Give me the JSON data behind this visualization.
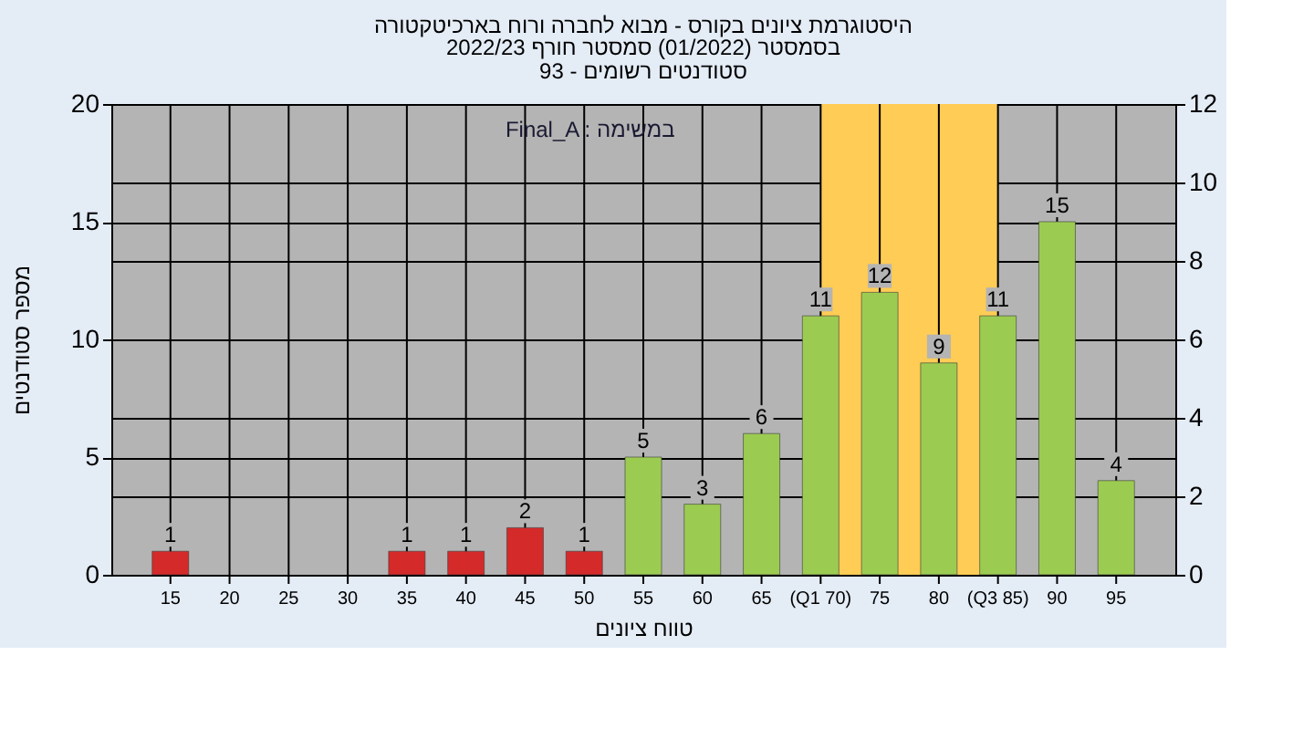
{
  "chart_data": {
    "type": "bar",
    "title": "היסטוגרמת ציונים בקורס - מבוא לחברה ורוח בארכיטקטורה",
    "subtitle": "בסמסטר  (01/2022)  סמסטר חורף 2022/23\nסטודנטים רשומים - 93",
    "xlabel": "טווח ציונים",
    "ylabel": "מספר סטודנטים",
    "annotations": [
      "Final_A : במשימה"
    ],
    "series": [
      {
        "x": [
          15,
          35,
          40,
          45,
          50
        ],
        "values": [
          1,
          1,
          1,
          2,
          1
        ],
        "color": "#d42a2a"
      },
      {
        "x": [
          55,
          60,
          65,
          70,
          75,
          80,
          85,
          90,
          95
        ],
        "values": [
          5,
          3,
          6,
          11,
          12,
          9,
          11,
          15,
          4
        ],
        "color": "#9ccb52"
      }
    ],
    "data_labels": true,
    "bands": [
      {
        "axis": "x",
        "from": 70,
        "to": 85,
        "color": "#ffcc55"
      }
    ],
    "xlim": [
      10,
      100
    ],
    "xticks": [
      15,
      20,
      25,
      30,
      35,
      40,
      45,
      50,
      55,
      60,
      65,
      {
        "value": 70,
        "label": "(Q1 70)"
      },
      75,
      80,
      {
        "value": 85,
        "label": "(Q3 85)"
      },
      90,
      95
    ],
    "ylim": [
      0,
      20
    ],
    "yticks": [
      0,
      5,
      10,
      15,
      20
    ],
    "y2lim": [
      0,
      12
    ],
    "y2ticks": [
      0,
      2,
      4,
      6,
      8,
      10,
      12
    ],
    "grid": true
  }
}
